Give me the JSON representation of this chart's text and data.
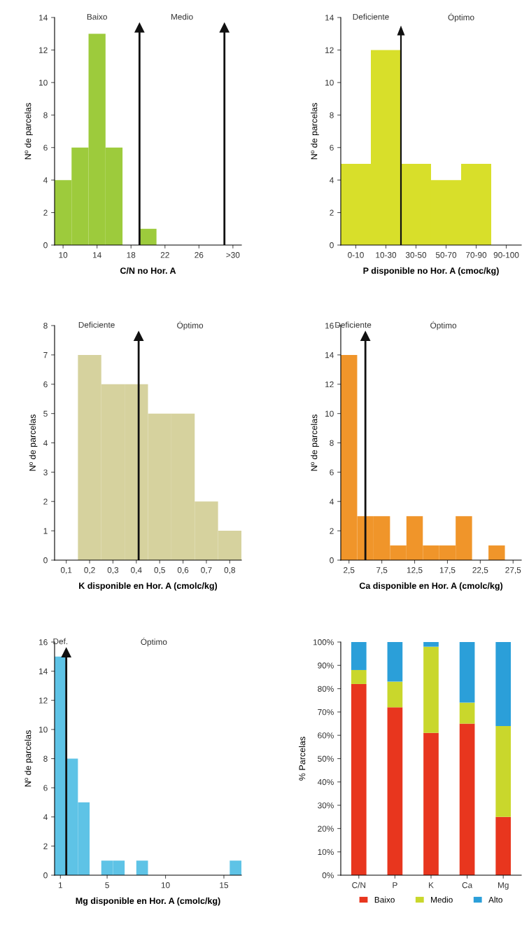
{
  "chart_data": [
    {
      "type": "histogram",
      "xlabel": "C/N no Hor. A",
      "ylabel": "Nº de parcelas",
      "color": "#9dcb3c",
      "bins": [
        9,
        11,
        13,
        15,
        17,
        19,
        21,
        23,
        25,
        27,
        29,
        31
      ],
      "values": [
        4,
        6,
        13,
        6,
        0,
        1,
        0,
        0,
        0,
        0,
        0
      ],
      "xlim": [
        9,
        31
      ],
      "xticks": [
        10,
        14,
        18,
        22,
        26,
        {
          "value": 30,
          "label": ">30"
        }
      ],
      "ylim": [
        0,
        14
      ],
      "yticks": [
        0,
        2,
        4,
        6,
        8,
        10,
        12,
        14
      ],
      "ref_lines": [
        {
          "axis": "x",
          "value": 19,
          "color": "#111111"
        },
        {
          "axis": "x",
          "value": 29,
          "color": "#111111"
        }
      ],
      "annotations": [
        "Baixo",
        "Medio"
      ]
    },
    {
      "type": "bar",
      "xlabel": "P disponible no Hor. A (cmoc/kg)",
      "ylabel": "Nº de parcelas",
      "color": "#d8df2a",
      "categories": [
        "0-10",
        "10-30",
        "30-50",
        "50-70",
        "70-90",
        "90-100"
      ],
      "values": [
        5,
        12,
        5,
        4,
        5,
        0
      ],
      "ylim": [
        0,
        14
      ],
      "yticks": [
        0,
        2,
        4,
        6,
        8,
        10,
        12,
        14
      ],
      "annotations": [
        "Deficiente",
        "Óptimo"
      ]
    },
    {
      "type": "histogram",
      "xlabel": "K disponible en Hor. A (cmolc/kg)",
      "ylabel": "Nº de parcelas",
      "color": "#d6d29e",
      "bins": [
        0.05,
        0.15,
        0.25,
        0.35,
        0.45,
        0.55,
        0.65,
        0.75,
        0.85
      ],
      "values": [
        0,
        7,
        6,
        6,
        5,
        5,
        2,
        1
      ],
      "xlim": [
        0.05,
        0.85
      ],
      "xticks": [
        {
          "value": 0.1,
          "label": "0,1"
        },
        {
          "value": 0.2,
          "label": "0,2"
        },
        {
          "value": 0.3,
          "label": "0,3"
        },
        {
          "value": 0.4,
          "label": "0,4"
        },
        {
          "value": 0.5,
          "label": "0,5"
        },
        {
          "value": 0.6,
          "label": "0,6"
        },
        {
          "value": 0.7,
          "label": "0,7"
        },
        {
          "value": 0.8,
          "label": "0,8"
        }
      ],
      "ylim": [
        0,
        8
      ],
      "yticks": [
        0,
        1,
        2,
        3,
        4,
        5,
        6,
        7,
        8
      ],
      "ref_lines": [
        {
          "axis": "x",
          "value": 0.41,
          "color": "#111111"
        }
      ],
      "annotations": [
        "Deficiente",
        "Óptimo"
      ]
    },
    {
      "type": "histogram",
      "xlabel": "Ca disponible en Hor. A (cmolc/kg)",
      "ylabel": "Nº de parcelas",
      "color": "#f0952a",
      "bins": [
        1.25,
        3.75,
        6.25,
        8.75,
        11.25,
        13.75,
        16.25,
        18.75,
        21.25,
        23.75,
        26.25,
        28.75
      ],
      "values": [
        14,
        3,
        3,
        1,
        3,
        1,
        1,
        3,
        0,
        1,
        0
      ],
      "xlim": [
        1.25,
        28.75
      ],
      "xticks": [
        {
          "value": 2.5,
          "label": "2,5"
        },
        {
          "value": 7.5,
          "label": "7,5"
        },
        {
          "value": 12.5,
          "label": "12,5"
        },
        {
          "value": 17.5,
          "label": "17,5"
        },
        {
          "value": 22.5,
          "label": "22,5"
        },
        {
          "value": 27.5,
          "label": "27,5"
        }
      ],
      "ylim": [
        0,
        16
      ],
      "yticks": [
        0,
        2,
        4,
        6,
        8,
        10,
        12,
        14,
        16
      ],
      "ref_lines": [
        {
          "axis": "x",
          "value": 5,
          "color": "#111111"
        }
      ],
      "annotations": [
        "Deficiente",
        "Óptimo"
      ]
    },
    {
      "type": "histogram",
      "xlabel": "Mg disponible en Hor. A (cmolc/kg)",
      "ylabel": "Nº de parcelas",
      "color": "#5ec3e6",
      "bins": [
        0.5,
        1.5,
        2.5,
        3.5,
        4.5,
        5.5,
        6.5,
        7.5,
        8.5,
        9.5,
        10.5,
        11.5,
        12.5,
        13.5,
        14.5,
        15.5,
        16.5
      ],
      "values": [
        15,
        8,
        5,
        0,
        1,
        1,
        0,
        1,
        0,
        0,
        0,
        0,
        0,
        0,
        0,
        1
      ],
      "xlim": [
        0.5,
        16.5
      ],
      "xticks": [
        1,
        5,
        10,
        15
      ],
      "ylim": [
        0,
        16
      ],
      "yticks": [
        0,
        2,
        4,
        6,
        8,
        10,
        12,
        14,
        16
      ],
      "ref_lines": [
        {
          "axis": "x",
          "value": 1.5,
          "color": "#111111"
        }
      ],
      "annotations": [
        "Def.",
        "Óptimo"
      ]
    },
    {
      "type": "bar",
      "stacked": true,
      "ylabel": "% Parcelas",
      "legend": "bottom",
      "categories": [
        "C/N",
        "P",
        "K",
        "Ca",
        "Mg"
      ],
      "series": [
        {
          "name": "Baixo",
          "color": "#e8361e",
          "values": [
            82,
            72,
            61,
            65,
            25
          ]
        },
        {
          "name": "Medio",
          "color": "#c9d72c",
          "values": [
            6,
            11,
            37,
            9,
            39
          ]
        },
        {
          "name": "Alto",
          "color": "#2b9fd9",
          "values": [
            12,
            17,
            2,
            26,
            36
          ]
        }
      ],
      "ylim": [
        0,
        100
      ],
      "yticks": [
        {
          "value": 0,
          "label": "0%"
        },
        {
          "value": 10,
          "label": "10%"
        },
        {
          "value": 20,
          "label": "20%"
        },
        {
          "value": 30,
          "label": "30%"
        },
        {
          "value": 40,
          "label": "40%"
        },
        {
          "value": 50,
          "label": "50%"
        },
        {
          "value": 60,
          "label": "60%"
        },
        {
          "value": 70,
          "label": "70%"
        },
        {
          "value": 80,
          "label": "80%"
        },
        {
          "value": 90,
          "label": "90%"
        },
        {
          "value": 100,
          "label": "100%"
        }
      ]
    }
  ]
}
